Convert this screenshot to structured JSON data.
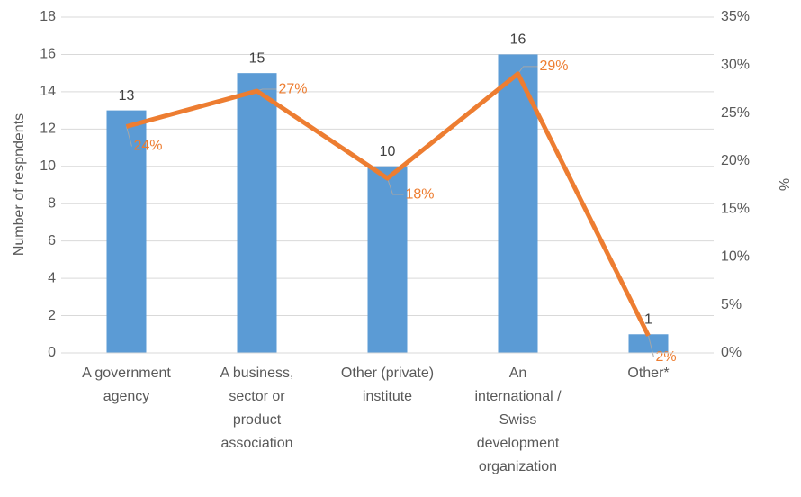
{
  "chart_data": {
    "type": "bar_line",
    "categories": [
      "A government agency",
      "A business, sector or product association",
      "Other (private) institute",
      "An international / Swiss development organization",
      "Other*"
    ],
    "series": [
      {
        "name": "Number of respndents",
        "type": "bar",
        "color": "#5b9bd5",
        "values": [
          13,
          15,
          10,
          16,
          1
        ]
      },
      {
        "name": "%",
        "type": "line",
        "axis": "y2",
        "color": "#ed7d31",
        "values": [
          23.6,
          27.3,
          18.2,
          29.1,
          1.8
        ],
        "value_labels": [
          "24%",
          "27%",
          "18%",
          "29%",
          "2%"
        ]
      }
    ],
    "ylabel": "Number of respndents",
    "y2label": "%",
    "ylim": [
      0,
      18
    ],
    "yticks": [
      0,
      2,
      4,
      6,
      8,
      10,
      12,
      14,
      16,
      18
    ],
    "y2lim": [
      0,
      35
    ],
    "y2ticks": [
      {
        "value": 0,
        "label": "0%"
      },
      {
        "value": 5,
        "label": "5%"
      },
      {
        "value": 10,
        "label": "10%"
      },
      {
        "value": 15,
        "label": "15%"
      },
      {
        "value": 20,
        "label": "20%"
      },
      {
        "value": 25,
        "label": "25%"
      },
      {
        "value": 30,
        "label": "30%"
      },
      {
        "value": 35,
        "label": "35%"
      }
    ],
    "grid": true
  }
}
